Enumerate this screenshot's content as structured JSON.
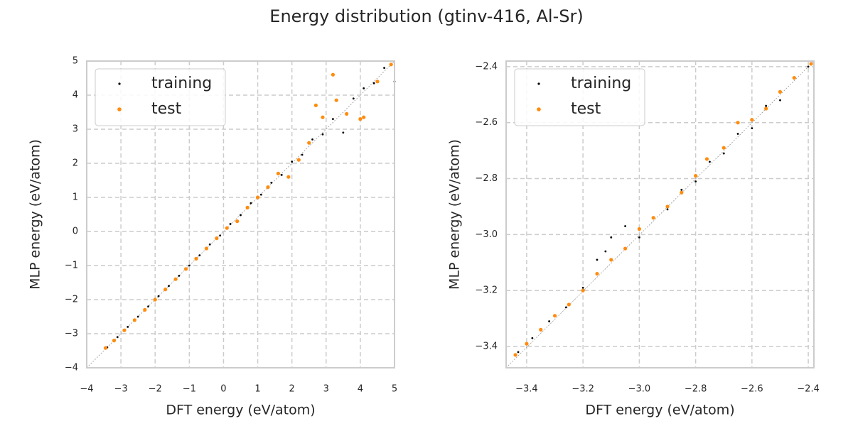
{
  "title": "Energy distribution (gtinv-416, Al-Sr)",
  "chart_data": [
    {
      "type": "scatter",
      "xlabel": "DFT energy (eV/atom)",
      "ylabel": "MLP energy (eV/atom)",
      "xlim": [
        -4,
        5
      ],
      "ylim": [
        -4,
        5
      ],
      "grid": true,
      "legend": "upper left",
      "xticks": [
        {
          "value": -4,
          "label": "−4"
        },
        {
          "value": -3,
          "label": "−3"
        },
        {
          "value": -2,
          "label": "−2"
        },
        {
          "value": -1,
          "label": "−1"
        },
        0,
        1,
        2,
        3,
        4,
        5
      ],
      "yticks": [
        {
          "value": -4,
          "label": "−4"
        },
        {
          "value": -3,
          "label": "−3"
        },
        {
          "value": -2,
          "label": "−2"
        },
        {
          "value": -1,
          "label": "−1"
        },
        0,
        1,
        2,
        3,
        4,
        5
      ],
      "series": [
        {
          "name": "training",
          "color": "#000000",
          "x": [
            -3.4,
            -3.1,
            -2.8,
            -2.5,
            -2.2,
            -1.9,
            -1.6,
            -1.3,
            -1.0,
            -0.7,
            -0.4,
            -0.1,
            0.2,
            0.5,
            0.8,
            1.1,
            1.4,
            1.7,
            2.0,
            2.3,
            2.6,
            2.9,
            3.2,
            3.5,
            3.8,
            4.1,
            4.4,
            4.7,
            4.9,
            5.0
          ],
          "values": [
            -3.4,
            -3.1,
            -2.8,
            -2.5,
            -2.2,
            -1.9,
            -1.6,
            -1.3,
            -1.0,
            -0.7,
            -0.38,
            -0.12,
            0.22,
            0.48,
            0.83,
            1.08,
            1.43,
            1.66,
            2.05,
            2.25,
            2.7,
            2.85,
            3.3,
            2.9,
            3.9,
            4.2,
            4.35,
            4.8,
            4.9,
            4.4
          ]
        },
        {
          "name": "test",
          "color": "#ff8c0e",
          "x": [
            -3.45,
            -3.2,
            -2.9,
            -2.6,
            -2.3,
            -2.0,
            -1.7,
            -1.4,
            -1.1,
            -0.8,
            -0.5,
            -0.2,
            0.1,
            0.4,
            0.7,
            1.0,
            1.3,
            1.6,
            1.9,
            2.2,
            2.5,
            2.7,
            2.9,
            3.2,
            3.3,
            3.6,
            4.0,
            4.1,
            4.5,
            4.9
          ],
          "values": [
            -3.42,
            -3.2,
            -2.9,
            -2.6,
            -2.3,
            -2.0,
            -1.7,
            -1.4,
            -1.1,
            -0.8,
            -0.5,
            -0.2,
            0.1,
            0.3,
            0.7,
            1.0,
            1.3,
            1.7,
            1.6,
            2.1,
            2.6,
            3.7,
            3.35,
            4.6,
            3.85,
            3.45,
            3.3,
            3.35,
            4.4,
            4.9
          ]
        }
      ]
    },
    {
      "type": "scatter",
      "xlabel": "DFT energy (eV/atom)",
      "ylabel": "MLP energy (eV/atom)",
      "xlim": [
        -3.473,
        -2.38
      ],
      "ylim": [
        -3.476,
        -2.38
      ],
      "grid": true,
      "legend": "upper left",
      "xticks": [
        {
          "value": -3.4,
          "label": "−3.4"
        },
        {
          "value": -3.2,
          "label": "−3.2"
        },
        {
          "value": -3.0,
          "label": "−3.0"
        },
        {
          "value": -2.8,
          "label": "−2.8"
        },
        {
          "value": -2.6,
          "label": "−2.6"
        },
        {
          "value": -2.4,
          "label": "−2.4"
        }
      ],
      "yticks": [
        {
          "value": -3.4,
          "label": "−3.4"
        },
        {
          "value": -3.2,
          "label": "−3.2"
        },
        {
          "value": -3.0,
          "label": "−3.0"
        },
        {
          "value": -2.8,
          "label": "−2.8"
        },
        {
          "value": -2.6,
          "label": "−2.6"
        },
        {
          "value": -2.4,
          "label": "−2.4"
        }
      ],
      "series": [
        {
          "name": "training",
          "color": "#000000",
          "x": [
            -3.43,
            -3.38,
            -3.32,
            -3.26,
            -3.2,
            -3.15,
            -3.12,
            -3.1,
            -3.05,
            -3.0,
            -2.95,
            -2.9,
            -2.85,
            -2.8,
            -2.75,
            -2.7,
            -2.65,
            -2.6,
            -2.55,
            -2.5,
            -2.45,
            -2.4
          ],
          "values": [
            -3.42,
            -3.37,
            -3.31,
            -3.26,
            -3.19,
            -3.09,
            -3.06,
            -3.01,
            -2.97,
            -3.01,
            -2.94,
            -2.91,
            -2.84,
            -2.81,
            -2.74,
            -2.71,
            -2.64,
            -2.62,
            -2.54,
            -2.52,
            -2.44,
            -2.4
          ]
        },
        {
          "name": "test",
          "color": "#ff8c0e",
          "x": [
            -3.44,
            -3.4,
            -3.35,
            -3.3,
            -3.25,
            -3.2,
            -3.15,
            -3.1,
            -3.05,
            -3.0,
            -2.95,
            -2.9,
            -2.85,
            -2.8,
            -2.76,
            -2.7,
            -2.65,
            -2.6,
            -2.55,
            -2.5,
            -2.45,
            -2.39
          ],
          "values": [
            -3.43,
            -3.39,
            -3.34,
            -3.29,
            -3.25,
            -3.2,
            -3.14,
            -3.09,
            -3.05,
            -2.98,
            -2.94,
            -2.9,
            -2.85,
            -2.79,
            -2.73,
            -2.69,
            -2.6,
            -2.59,
            -2.55,
            -2.49,
            -2.44,
            -2.39
          ]
        }
      ]
    }
  ]
}
